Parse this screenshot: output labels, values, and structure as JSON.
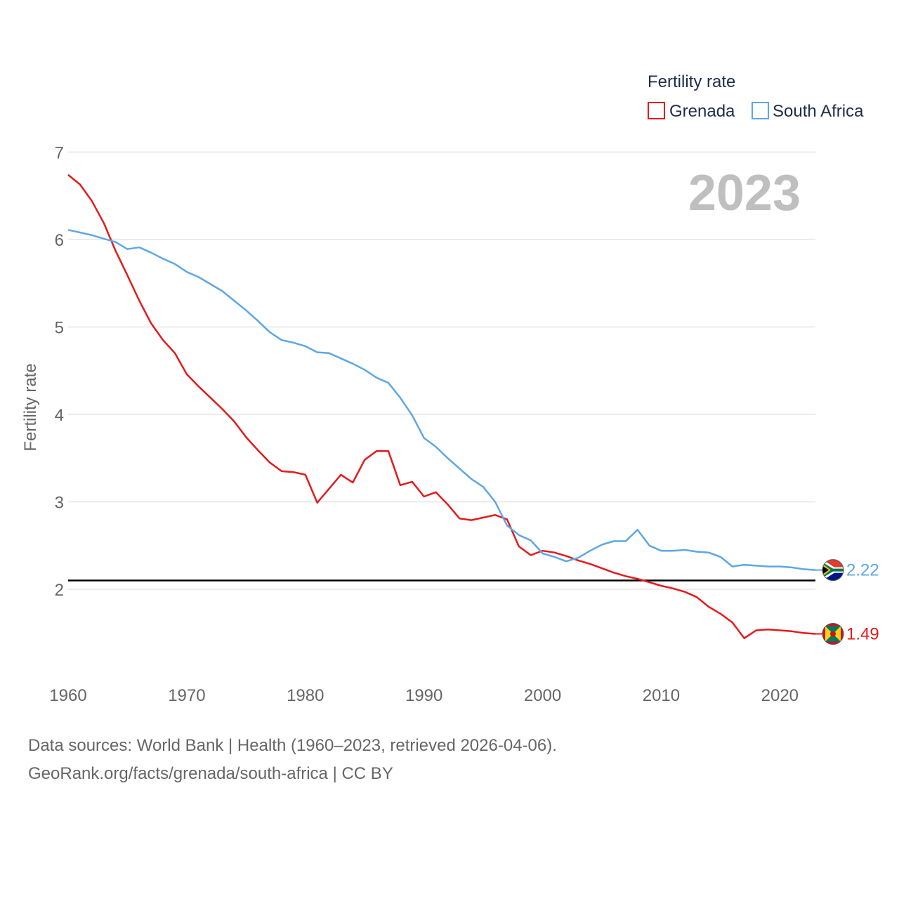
{
  "chart_data": {
    "type": "line",
    "title": "",
    "legend_title": "Fertility rate",
    "year_label": "2023",
    "xlabel": "",
    "ylabel": "Fertility rate",
    "xlim": [
      1960,
      2023
    ],
    "ylim": [
      1.0,
      7.0
    ],
    "x_ticks": [
      1960,
      1970,
      1980,
      1990,
      2000,
      2010,
      2020
    ],
    "y_ticks": [
      2,
      3,
      4,
      5,
      6,
      7
    ],
    "reference_line": 2.1,
    "x": [
      1960,
      1961,
      1962,
      1963,
      1964,
      1965,
      1966,
      1967,
      1968,
      1969,
      1970,
      1971,
      1972,
      1973,
      1974,
      1975,
      1976,
      1977,
      1978,
      1979,
      1980,
      1981,
      1982,
      1983,
      1984,
      1985,
      1986,
      1987,
      1988,
      1989,
      1990,
      1991,
      1992,
      1993,
      1994,
      1995,
      1996,
      1997,
      1998,
      1999,
      2000,
      2001,
      2002,
      2003,
      2004,
      2005,
      2006,
      2007,
      2008,
      2009,
      2010,
      2011,
      2012,
      2013,
      2014,
      2015,
      2016,
      2017,
      2018,
      2019,
      2020,
      2021,
      2022,
      2023
    ],
    "series": [
      {
        "name": "Grenada",
        "color": "#e41a1c",
        "end_label": "1.49",
        "flag": "grenada-flag-icon",
        "values": [
          6.74,
          6.63,
          6.44,
          6.19,
          5.87,
          5.59,
          5.3,
          5.04,
          4.85,
          4.7,
          4.46,
          4.32,
          4.19,
          4.06,
          3.92,
          3.74,
          3.59,
          3.45,
          3.35,
          3.34,
          3.31,
          2.99,
          3.15,
          3.31,
          3.22,
          3.48,
          3.58,
          3.58,
          3.19,
          3.23,
          3.06,
          3.11,
          2.97,
          2.81,
          2.79,
          2.82,
          2.85,
          2.8,
          2.49,
          2.39,
          2.44,
          2.42,
          2.38,
          2.33,
          2.29,
          2.24,
          2.19,
          2.15,
          2.12,
          2.08,
          2.04,
          2.01,
          1.97,
          1.91,
          1.8,
          1.72,
          1.62,
          1.44,
          1.53,
          1.54,
          1.53,
          1.52,
          1.5,
          1.49
        ]
      },
      {
        "name": "South Africa",
        "color": "#5ea7e6",
        "end_label": "2.22",
        "flag": "south-africa-flag-icon",
        "values": [
          6.11,
          6.08,
          6.05,
          6.01,
          5.97,
          5.89,
          5.91,
          5.85,
          5.78,
          5.72,
          5.63,
          5.57,
          5.49,
          5.41,
          5.3,
          5.19,
          5.07,
          4.94,
          4.85,
          4.82,
          4.78,
          4.71,
          4.7,
          4.64,
          4.58,
          4.51,
          4.42,
          4.36,
          4.19,
          3.99,
          3.73,
          3.63,
          3.5,
          3.38,
          3.26,
          3.17,
          3.0,
          2.73,
          2.62,
          2.56,
          2.41,
          2.37,
          2.32,
          2.36,
          2.44,
          2.51,
          2.55,
          2.55,
          2.68,
          2.5,
          2.44,
          2.44,
          2.45,
          2.43,
          2.42,
          2.37,
          2.26,
          2.28,
          2.27,
          2.26,
          2.26,
          2.25,
          2.23,
          2.22
        ]
      }
    ]
  },
  "source": {
    "line1": "Data sources: World Bank | Health (1960–2023, retrieved 2026-04-06).",
    "line2": "GeoRank.org/facts/grenada/south-africa | CC BY"
  }
}
